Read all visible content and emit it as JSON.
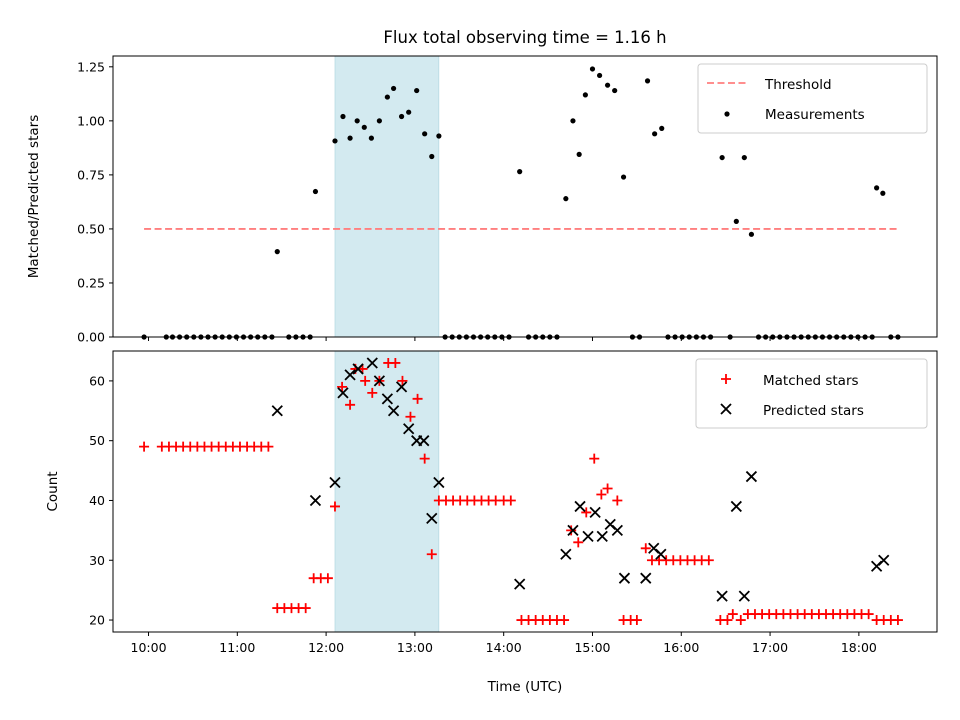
{
  "chart_data": {
    "title": "Flux total observing time = 1.16 h",
    "xlabel": "Time (UTC)",
    "x_ticks": [
      {
        "v": 10,
        "label": "10:00"
      },
      {
        "v": 11,
        "label": "11:00"
      },
      {
        "v": 12,
        "label": "12:00"
      },
      {
        "v": 13,
        "label": "13:00"
      },
      {
        "v": 14,
        "label": "14:00"
      },
      {
        "v": 15,
        "label": "15:00"
      },
      {
        "v": 16,
        "label": "16:00"
      },
      {
        "v": 17,
        "label": "17:00"
      },
      {
        "v": 18,
        "label": "18:00"
      }
    ],
    "xlim": [
      9.6,
      18.88
    ],
    "highlight_span": [
      12.1,
      13.27
    ],
    "colors": {
      "highlight": "#d3eaf0",
      "threshold": "#ff7f7f",
      "matched": "#ff0000",
      "predicted": "#000000",
      "measurement": "#000000"
    },
    "top": {
      "type": "scatter",
      "ylabel": "Matched/Predicted stars",
      "ylim": [
        0,
        1.3
      ],
      "y_ticks": [
        {
          "v": 0,
          "label": "0.00"
        },
        {
          "v": 0.25,
          "label": "0.25"
        },
        {
          "v": 0.5,
          "label": "0.50"
        },
        {
          "v": 0.75,
          "label": "0.75"
        },
        {
          "v": 1.0,
          "label": "1.00"
        },
        {
          "v": 1.25,
          "label": "1.25"
        }
      ],
      "legend_position": "top-right",
      "threshold": {
        "name": "Threshold",
        "y": 0.5,
        "x_range": [
          9.95,
          18.45
        ]
      },
      "measurements": {
        "name": "Measurements",
        "points": [
          [
            9.95,
            0
          ],
          [
            10.2,
            0
          ],
          [
            10.27,
            0
          ],
          [
            10.35,
            0
          ],
          [
            10.43,
            0
          ],
          [
            10.51,
            0
          ],
          [
            10.59,
            0
          ],
          [
            10.67,
            0
          ],
          [
            10.75,
            0
          ],
          [
            10.83,
            0
          ],
          [
            10.91,
            0
          ],
          [
            10.99,
            0
          ],
          [
            11.07,
            0
          ],
          [
            11.15,
            0
          ],
          [
            11.23,
            0
          ],
          [
            11.31,
            0
          ],
          [
            11.39,
            0
          ],
          [
            11.45,
            0.395
          ],
          [
            11.58,
            0
          ],
          [
            11.66,
            0
          ],
          [
            11.74,
            0
          ],
          [
            11.82,
            0
          ],
          [
            11.88,
            0.673
          ],
          [
            12.1,
            0.907
          ],
          [
            12.19,
            1.02
          ],
          [
            12.27,
            0.92
          ],
          [
            12.35,
            1.0
          ],
          [
            12.43,
            0.97
          ],
          [
            12.51,
            0.92
          ],
          [
            12.6,
            1.0
          ],
          [
            12.69,
            1.11
          ],
          [
            12.76,
            1.15
          ],
          [
            12.85,
            1.02
          ],
          [
            12.93,
            1.04
          ],
          [
            13.02,
            1.14
          ],
          [
            13.11,
            0.94
          ],
          [
            13.19,
            0.835
          ],
          [
            13.27,
            0.93
          ],
          [
            13.34,
            0
          ],
          [
            13.42,
            0
          ],
          [
            13.5,
            0
          ],
          [
            13.58,
            0
          ],
          [
            13.66,
            0
          ],
          [
            13.74,
            0
          ],
          [
            13.82,
            0
          ],
          [
            13.9,
            0
          ],
          [
            13.98,
            0
          ],
          [
            14.06,
            0
          ],
          [
            14.18,
            0.765
          ],
          [
            14.28,
            0
          ],
          [
            14.36,
            0
          ],
          [
            14.44,
            0
          ],
          [
            14.52,
            0
          ],
          [
            14.6,
            0
          ],
          [
            14.7,
            0.64
          ],
          [
            14.78,
            1.0
          ],
          [
            14.85,
            0.845
          ],
          [
            14.92,
            1.12
          ],
          [
            15.0,
            1.24
          ],
          [
            15.08,
            1.21
          ],
          [
            15.17,
            1.165
          ],
          [
            15.25,
            1.14
          ],
          [
            15.35,
            0.74
          ],
          [
            15.45,
            0
          ],
          [
            15.53,
            0
          ],
          [
            15.62,
            1.185
          ],
          [
            15.7,
            0.94
          ],
          [
            15.78,
            0.965
          ],
          [
            15.85,
            0
          ],
          [
            15.93,
            0
          ],
          [
            16.01,
            0
          ],
          [
            16.09,
            0
          ],
          [
            16.17,
            0
          ],
          [
            16.25,
            0
          ],
          [
            16.33,
            0
          ],
          [
            16.46,
            0.83
          ],
          [
            16.55,
            0
          ],
          [
            16.62,
            0.535
          ],
          [
            16.71,
            0.83
          ],
          [
            16.79,
            0.475
          ],
          [
            16.87,
            0
          ],
          [
            16.95,
            0
          ],
          [
            17.03,
            0
          ],
          [
            17.11,
            0
          ],
          [
            17.19,
            0
          ],
          [
            17.27,
            0
          ],
          [
            17.35,
            0
          ],
          [
            17.43,
            0
          ],
          [
            17.51,
            0
          ],
          [
            17.59,
            0
          ],
          [
            17.67,
            0
          ],
          [
            17.75,
            0
          ],
          [
            17.83,
            0
          ],
          [
            17.91,
            0
          ],
          [
            17.99,
            0
          ],
          [
            18.07,
            0
          ],
          [
            18.15,
            0
          ],
          [
            18.2,
            0.69
          ],
          [
            18.27,
            0.665
          ],
          [
            18.36,
            0
          ],
          [
            18.44,
            0
          ]
        ]
      }
    },
    "bottom": {
      "type": "scatter",
      "ylabel": "Count",
      "ylim": [
        18,
        65
      ],
      "y_ticks": [
        {
          "v": 20,
          "label": "20"
        },
        {
          "v": 30,
          "label": "30"
        },
        {
          "v": 40,
          "label": "40"
        },
        {
          "v": 50,
          "label": "50"
        },
        {
          "v": 60,
          "label": "60"
        }
      ],
      "legend_position": "top-right",
      "series": [
        {
          "name": "Matched stars",
          "marker": "plus",
          "points": [
            [
              9.95,
              49
            ],
            [
              10.15,
              49
            ],
            [
              10.23,
              49
            ],
            [
              10.31,
              49
            ],
            [
              10.39,
              49
            ],
            [
              10.47,
              49
            ],
            [
              10.55,
              49
            ],
            [
              10.63,
              49
            ],
            [
              10.71,
              49
            ],
            [
              10.79,
              49
            ],
            [
              10.87,
              49
            ],
            [
              10.95,
              49
            ],
            [
              11.03,
              49
            ],
            [
              11.11,
              49
            ],
            [
              11.19,
              49
            ],
            [
              11.27,
              49
            ],
            [
              11.35,
              49
            ],
            [
              11.45,
              22
            ],
            [
              11.53,
              22
            ],
            [
              11.61,
              22
            ],
            [
              11.69,
              22
            ],
            [
              11.77,
              22
            ],
            [
              11.86,
              27
            ],
            [
              11.94,
              27
            ],
            [
              12.02,
              27
            ],
            [
              12.1,
              39
            ],
            [
              12.18,
              59
            ],
            [
              12.27,
              56
            ],
            [
              12.33,
              62
            ],
            [
              12.41,
              62
            ],
            [
              12.44,
              60
            ],
            [
              12.52,
              58
            ],
            [
              12.6,
              60
            ],
            [
              12.7,
              63
            ],
            [
              12.78,
              63
            ],
            [
              12.86,
              60
            ],
            [
              12.95,
              54
            ],
            [
              13.03,
              57
            ],
            [
              13.11,
              47
            ],
            [
              13.19,
              31
            ],
            [
              13.27,
              40
            ],
            [
              13.35,
              40
            ],
            [
              13.43,
              40
            ],
            [
              13.51,
              40
            ],
            [
              13.59,
              40
            ],
            [
              13.67,
              40
            ],
            [
              13.75,
              40
            ],
            [
              13.83,
              40
            ],
            [
              13.91,
              40
            ],
            [
              14.0,
              40
            ],
            [
              14.08,
              40
            ],
            [
              14.2,
              20
            ],
            [
              14.28,
              20
            ],
            [
              14.36,
              20
            ],
            [
              14.44,
              20
            ],
            [
              14.52,
              20
            ],
            [
              14.6,
              20
            ],
            [
              14.68,
              20
            ],
            [
              14.76,
              35
            ],
            [
              14.84,
              33
            ],
            [
              14.93,
              38
            ],
            [
              15.02,
              47
            ],
            [
              15.1,
              41
            ],
            [
              15.17,
              42
            ],
            [
              15.28,
              40
            ],
            [
              15.35,
              20
            ],
            [
              15.43,
              20
            ],
            [
              15.5,
              20
            ],
            [
              15.6,
              32
            ],
            [
              15.67,
              30
            ],
            [
              15.75,
              30
            ],
            [
              15.83,
              30
            ],
            [
              15.91,
              30
            ],
            [
              15.99,
              30
            ],
            [
              16.07,
              30
            ],
            [
              16.15,
              30
            ],
            [
              16.23,
              30
            ],
            [
              16.31,
              30
            ],
            [
              16.44,
              20
            ],
            [
              16.52,
              20
            ],
            [
              16.58,
              21
            ],
            [
              16.67,
              20
            ],
            [
              16.75,
              21
            ],
            [
              16.83,
              21
            ],
            [
              16.91,
              21
            ],
            [
              16.99,
              21
            ],
            [
              17.07,
              21
            ],
            [
              17.15,
              21
            ],
            [
              17.23,
              21
            ],
            [
              17.31,
              21
            ],
            [
              17.39,
              21
            ],
            [
              17.47,
              21
            ],
            [
              17.55,
              21
            ],
            [
              17.63,
              21
            ],
            [
              17.71,
              21
            ],
            [
              17.79,
              21
            ],
            [
              17.87,
              21
            ],
            [
              17.95,
              21
            ],
            [
              18.03,
              21
            ],
            [
              18.11,
              21
            ],
            [
              18.2,
              20
            ],
            [
              18.28,
              20
            ],
            [
              18.36,
              20
            ],
            [
              18.44,
              20
            ]
          ]
        },
        {
          "name": "Predicted stars",
          "marker": "x",
          "points": [
            [
              11.45,
              55
            ],
            [
              11.88,
              40
            ],
            [
              12.1,
              43
            ],
            [
              12.19,
              58
            ],
            [
              12.27,
              61
            ],
            [
              12.36,
              62
            ],
            [
              12.52,
              63
            ],
            [
              12.6,
              60
            ],
            [
              12.69,
              57
            ],
            [
              12.76,
              55
            ],
            [
              12.85,
              59
            ],
            [
              12.93,
              52
            ],
            [
              13.02,
              50
            ],
            [
              13.1,
              50
            ],
            [
              13.19,
              37
            ],
            [
              13.27,
              43
            ],
            [
              14.18,
              26
            ],
            [
              14.7,
              31
            ],
            [
              14.78,
              35
            ],
            [
              14.86,
              39
            ],
            [
              14.95,
              34
            ],
            [
              15.03,
              38
            ],
            [
              15.11,
              34
            ],
            [
              15.2,
              36
            ],
            [
              15.28,
              35
            ],
            [
              15.36,
              27
            ],
            [
              15.6,
              27
            ],
            [
              15.69,
              32
            ],
            [
              15.77,
              31
            ],
            [
              16.46,
              24
            ],
            [
              16.62,
              39
            ],
            [
              16.71,
              24
            ],
            [
              16.79,
              44
            ],
            [
              18.2,
              29
            ],
            [
              18.28,
              30
            ]
          ]
        }
      ]
    }
  }
}
